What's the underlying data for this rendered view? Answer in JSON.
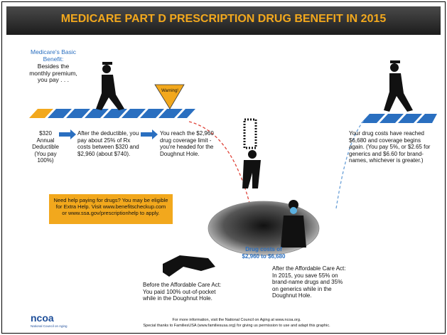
{
  "header": {
    "title": "MEDICARE PART D PRESCRIPTION DRUG BENEFIT IN 2015"
  },
  "basic_benefit": {
    "heading": "Medicare's Basic Benefit:",
    "text": "Besides the monthly premium, you pay . . ."
  },
  "warning": "Warning!",
  "steps": [
    {
      "text": "$320 Annual Deductible (You pay 100%)"
    },
    {
      "text": "After the deductible, you pay about 25% of Rx costs between $320 and $2,960 (about $740)."
    },
    {
      "text": "You reach the $2,960 drug coverage limit - you're headed for the Doughnut Hole."
    },
    {
      "text": "Your drug costs have reached $6,680 and coverage begins again. (You pay 5%, or $2.65 for generics and $6.60 for brand-names, whichever is greater.)"
    }
  ],
  "help_box": "Need help paying for drugs? You may be eligible for Extra Help. Visit www.benefitscheckup.com or www.ssa.gov/prescriptionhelp to apply.",
  "hole_label": "Drug costs of $2,960 to $6,680",
  "before_aca": "Before the Affordable Care Act: You paid 100% out-of-pocket while in the Doughnut Hole.",
  "after_aca": "After the Affordable Care Act: In 2015, you save 55% on brand-name drugs and 35% on generics while in the Doughnut Hole.",
  "footer": {
    "line1": "For more information, visit the National Council on Aging at www.ncoa.org.",
    "line2": "Special thanks to FamiliesUSA (www.familiesusa.org) for giving us permission to use and adapt this graphic."
  },
  "logo": {
    "name": "ncoa",
    "subtitle": "National Council on Aging"
  }
}
